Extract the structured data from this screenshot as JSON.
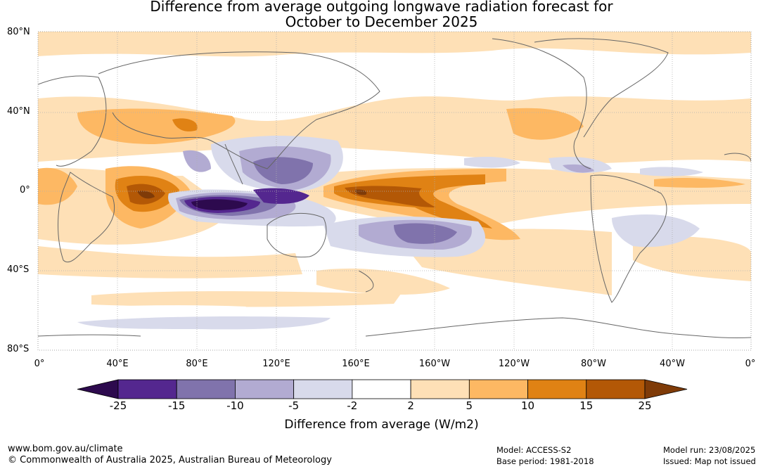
{
  "title": {
    "line1": "Difference from average outgoing longwave radiation forecast for",
    "line2": "October to December 2025"
  },
  "lat_labels": [
    "80°N",
    "40°N",
    "0°",
    "40°S",
    "80°S"
  ],
  "lon_labels": [
    "0°",
    "40°E",
    "80°E",
    "120°E",
    "160°E",
    "160°W",
    "120°W",
    "80°W",
    "40°W",
    "0°"
  ],
  "colorbar": {
    "title": "Difference from average (W/m2)",
    "ticks": [
      "-25",
      "-15",
      "-10",
      "-5",
      "-2",
      "2",
      "5",
      "10",
      "15",
      "25"
    ],
    "colors": [
      "#2d0a4e",
      "#54278f",
      "#8073ac",
      "#b2abd2",
      "#d8daeb",
      "#ffffff",
      "#fee0b6",
      "#fdb863",
      "#e08214",
      "#b35806",
      "#7f3b08"
    ]
  },
  "footer": {
    "website": "www.bom.gov.au/climate",
    "copyright": "© Commonwealth of Australia 2025, Australian Bureau of Meteorology",
    "model": "Model: ACCESS-S2",
    "base_period": "Base period: 1981-2018",
    "model_run": "Model run: 23/08/2025",
    "issued": "Issued: Map not issued"
  }
}
